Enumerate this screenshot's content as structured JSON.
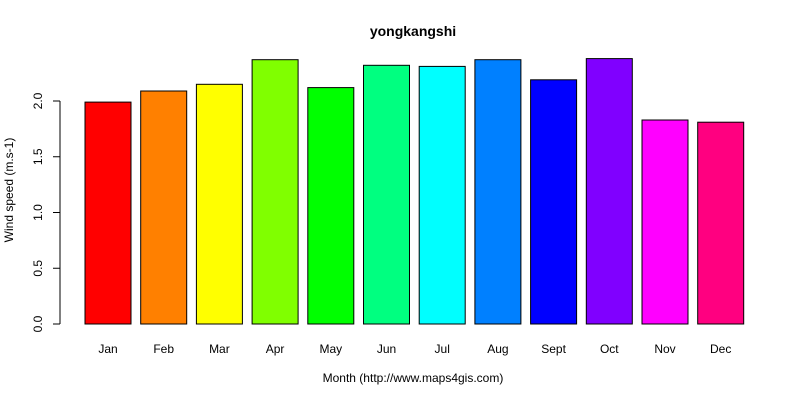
{
  "chart_data": {
    "type": "bar",
    "title": "yongkangshi",
    "xlabel": "Month (http://www.maps4gis.com)",
    "ylabel": "Wind speed (m.s-1)",
    "categories": [
      "Jan",
      "Feb",
      "Mar",
      "Apr",
      "May",
      "Jun",
      "Jul",
      "Aug",
      "Sept",
      "Oct",
      "Nov",
      "Dec"
    ],
    "values": [
      1.99,
      2.09,
      2.15,
      2.37,
      2.12,
      2.32,
      2.31,
      2.37,
      2.19,
      2.38,
      1.83,
      1.81
    ],
    "colors": [
      "#FF0000",
      "#FF8000",
      "#FFFF00",
      "#80FF00",
      "#00FF00",
      "#00FF80",
      "#00FFFF",
      "#0080FF",
      "#0000FF",
      "#8000FF",
      "#FF00FF",
      "#FF0080"
    ],
    "yticks": [
      0.0,
      0.5,
      1.0,
      1.5,
      2.0
    ],
    "ytick_labels": [
      "0.0",
      "0.5",
      "1.0",
      "1.5",
      "2.0"
    ],
    "ylim": [
      0,
      2.4
    ],
    "grid": false,
    "legend": "none"
  }
}
